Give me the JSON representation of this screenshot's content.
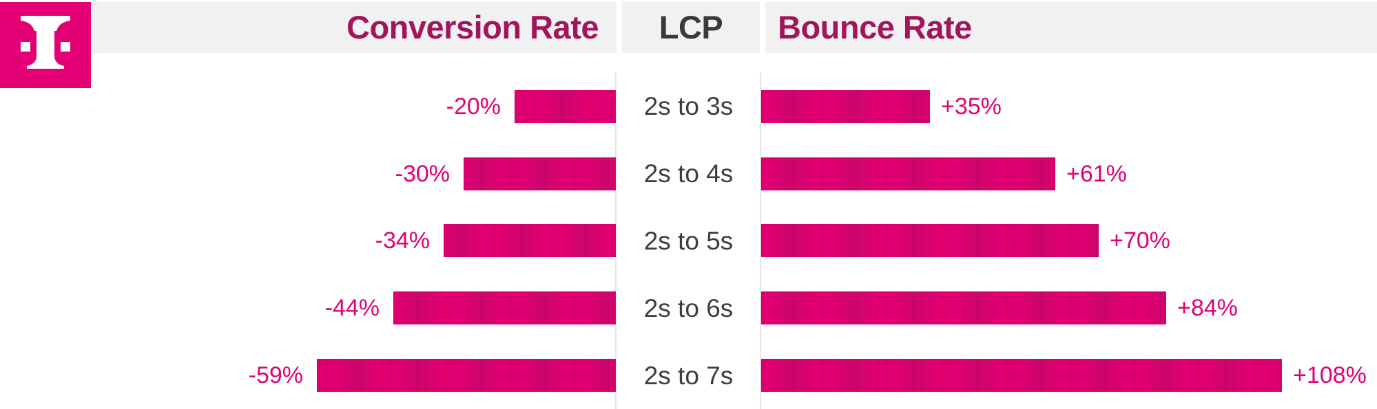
{
  "logo": {
    "brand": "Telekom",
    "letter": "T",
    "background": "#E20074",
    "foreground": "#FFFFFF"
  },
  "header": {
    "background": "#F1F1F1",
    "columns": [
      {
        "label": "Conversion Rate",
        "color": "#A2155C"
      },
      {
        "label": "LCP",
        "color": "#3A3A3A"
      },
      {
        "label": "Bounce Rate",
        "color": "#A2155C"
      }
    ]
  },
  "chart_data": {
    "type": "bar",
    "variant": "diverging-horizontal",
    "title": "",
    "center_column_label": "LCP",
    "categories": [
      "2s to 3s",
      "2s to 4s",
      "2s to 5s",
      "2s to 6s",
      "2s to 7s"
    ],
    "series": [
      {
        "name": "Conversion Rate",
        "side": "left",
        "values": [
          -20,
          -30,
          -34,
          -44,
          -59
        ],
        "labels": [
          "-20%",
          "-30%",
          "-34%",
          "-44%",
          "-59%"
        ]
      },
      {
        "name": "Bounce Rate",
        "side": "right",
        "values": [
          35,
          61,
          70,
          84,
          108
        ],
        "labels": [
          "+35%",
          "+61%",
          "+70%",
          "+84%",
          "+108%"
        ]
      }
    ],
    "rows": [
      {
        "lcp": "2s to 3s",
        "conversion": -20,
        "conversion_label": "-20%",
        "bounce": 35,
        "bounce_label": "+35%"
      },
      {
        "lcp": "2s to 4s",
        "conversion": -30,
        "conversion_label": "-30%",
        "bounce": 61,
        "bounce_label": "+61%"
      },
      {
        "lcp": "2s to 5s",
        "conversion": -34,
        "conversion_label": "-34%",
        "bounce": 70,
        "bounce_label": "+70%"
      },
      {
        "lcp": "2s to 6s",
        "conversion": -44,
        "conversion_label": "-44%",
        "bounce": 84,
        "bounce_label": "+84%"
      },
      {
        "lcp": "2s to 7s",
        "conversion": -59,
        "conversion_label": "-59%",
        "bounce": 108,
        "bounce_label": "+108%"
      }
    ],
    "bar_color": "#E20074",
    "value_label_color": "#E20074",
    "category_label_color": "#3D3D3D",
    "axis": {
      "gridlines": false,
      "value_axis_hidden": true,
      "legend": "column headers"
    }
  }
}
